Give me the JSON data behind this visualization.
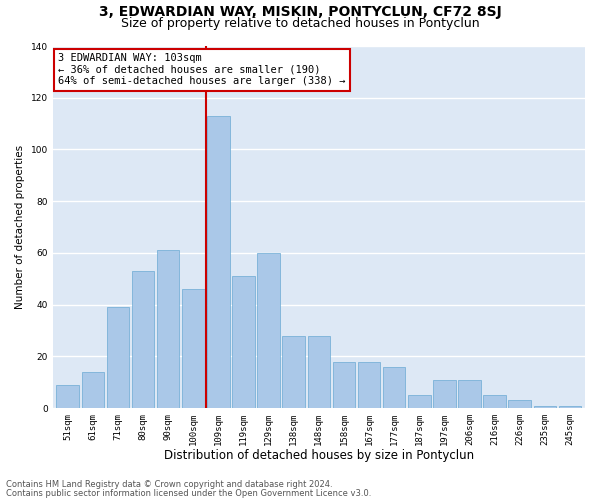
{
  "title": "3, EDWARDIAN WAY, MISKIN, PONTYCLUN, CF72 8SJ",
  "subtitle": "Size of property relative to detached houses in Pontyclun",
  "xlabel": "Distribution of detached houses by size in Pontyclun",
  "ylabel": "Number of detached properties",
  "categories": [
    "51sqm",
    "61sqm",
    "71sqm",
    "80sqm",
    "90sqm",
    "100sqm",
    "109sqm",
    "119sqm",
    "129sqm",
    "138sqm",
    "148sqm",
    "158sqm",
    "167sqm",
    "177sqm",
    "187sqm",
    "197sqm",
    "206sqm",
    "216sqm",
    "226sqm",
    "235sqm",
    "245sqm"
  ],
  "values": [
    9,
    14,
    39,
    53,
    61,
    46,
    113,
    51,
    60,
    28,
    28,
    18,
    18,
    16,
    5,
    11,
    11,
    5,
    3,
    1,
    1
  ],
  "bar_color": "#aac8e8",
  "bar_edge_color": "#6aaad4",
  "property_label": "3 EDWARDIAN WAY: 103sqm",
  "annotation_line1": "← 36% of detached houses are smaller (190)",
  "annotation_line2": "64% of semi-detached houses are larger (338) →",
  "vline_x_index": 5.5,
  "vline_color": "#cc0000",
  "box_color": "#cc0000",
  "ylim": [
    0,
    140
  ],
  "yticks": [
    0,
    20,
    40,
    60,
    80,
    100,
    120,
    140
  ],
  "background_color": "#dde8f5",
  "footer_line1": "Contains HM Land Registry data © Crown copyright and database right 2024.",
  "footer_line2": "Contains public sector information licensed under the Open Government Licence v3.0.",
  "title_fontsize": 10,
  "subtitle_fontsize": 9,
  "xlabel_fontsize": 8.5,
  "ylabel_fontsize": 7.5,
  "tick_fontsize": 6.5,
  "annotation_fontsize": 7.5,
  "footer_fontsize": 6
}
